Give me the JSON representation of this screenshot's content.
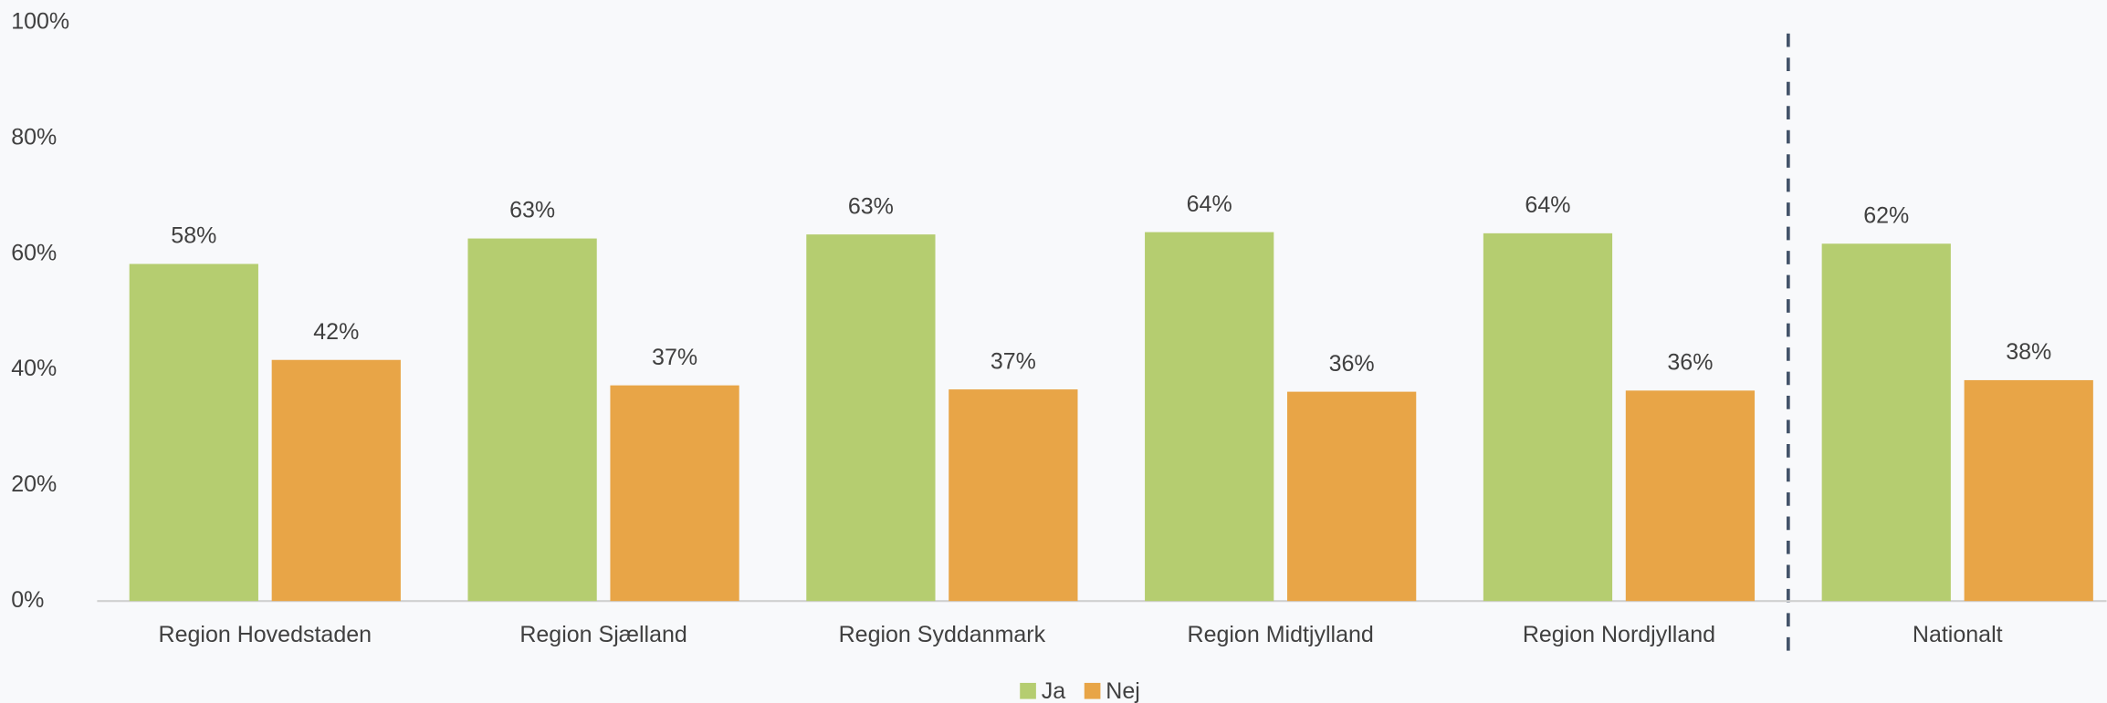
{
  "chart_data": {
    "type": "bar",
    "categories": [
      "Region Hovedstaden",
      "Region Sjælland",
      "Region Syddanmark",
      "Region Midtjylland",
      "Region Nordjylland",
      "Nationalt"
    ],
    "series": [
      {
        "name": "Ja",
        "color": "#b5cd70",
        "values": [
          58.3,
          62.7,
          63.4,
          63.8,
          63.6,
          61.8
        ],
        "value_labels": [
          "58%",
          "63%",
          "63%",
          "64%",
          "64%",
          "62%"
        ]
      },
      {
        "name": "Nej",
        "color": "#e8a547",
        "values": [
          41.7,
          37.3,
          36.6,
          36.2,
          36.4,
          38.2
        ],
        "value_labels": [
          "42%",
          "37%",
          "37%",
          "36%",
          "36%",
          "38%"
        ]
      }
    ],
    "ylim": [
      0,
      100
    ],
    "yticks": [
      {
        "value": 0,
        "label": "0%"
      },
      {
        "value": 20,
        "label": "20%"
      },
      {
        "value": 40,
        "label": "40%"
      },
      {
        "value": 60,
        "label": "60%"
      },
      {
        "value": 80,
        "label": "80%"
      },
      {
        "value": 100,
        "label": "100%"
      }
    ],
    "grid": false,
    "legend": "bottom"
  }
}
